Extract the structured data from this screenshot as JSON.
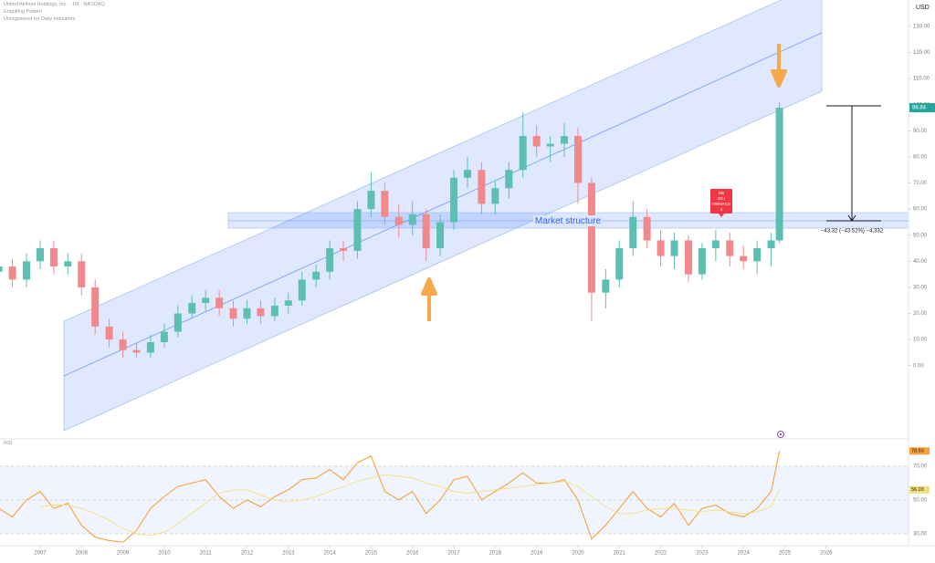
{
  "header": {
    "title": "United Airlines Holdings, Inc. · 1M · NASDAQ",
    "line2": "Engulfing Pattern",
    "line3": "Unregistered for Daily Indicators"
  },
  "currency": "USD",
  "chart_data": [
    {
      "type": "candlestick",
      "x": [
        2006,
        2006.33,
        2006.67,
        2007,
        2007.33,
        2007.67,
        2008,
        2008.33,
        2008.67,
        2009,
        2009.33,
        2009.67,
        2010,
        2010.33,
        2010.67,
        2011,
        2011.33,
        2011.67,
        2012,
        2012.33,
        2012.67,
        2013,
        2013.33,
        2013.67,
        2014,
        2014.33,
        2014.67,
        2015,
        2015.33,
        2015.67,
        2016,
        2016.33,
        2016.67,
        2017,
        2017.33,
        2017.67,
        2018,
        2018.33,
        2018.67,
        2019,
        2019.33,
        2019.67,
        2020,
        2020.33,
        2020.67,
        2021,
        2021.33,
        2021.67,
        2022,
        2022.33,
        2022.67,
        2023,
        2023.33,
        2023.67,
        2024,
        2024.33,
        2024.67,
        2024.87
      ],
      "open": [
        36,
        38,
        33,
        40,
        45,
        38,
        40,
        30,
        15,
        10,
        6,
        5,
        9,
        13,
        20,
        24,
        26,
        22,
        18,
        22,
        19,
        23,
        25,
        33,
        36,
        45,
        44,
        60,
        67,
        57,
        54,
        58,
        45,
        55,
        72,
        75,
        62,
        68,
        75,
        88,
        84,
        85,
        88,
        70,
        28,
        33,
        45,
        57,
        48,
        42,
        48,
        35,
        45,
        48,
        42,
        40,
        45,
        48
      ],
      "high": [
        41,
        41,
        43,
        48,
        48,
        43,
        43,
        33,
        18,
        13,
        9,
        12,
        16,
        23,
        27,
        29,
        29,
        25,
        25,
        25,
        26,
        28,
        36,
        39,
        48,
        48,
        63,
        74,
        70,
        62,
        63,
        60,
        58,
        75,
        80,
        78,
        71,
        78,
        97,
        92,
        88,
        93,
        91,
        72,
        37,
        48,
        63,
        60,
        52,
        51,
        50,
        47,
        52,
        51,
        46,
        48,
        51,
        101
      ],
      "low": [
        33,
        30,
        30,
        37,
        35,
        35,
        27,
        12,
        7,
        3,
        3,
        3,
        7,
        11,
        18,
        21,
        19,
        15,
        16,
        16,
        17,
        20,
        23,
        30,
        33,
        40,
        41,
        57,
        54,
        49,
        50,
        40,
        42,
        52,
        68,
        58,
        58,
        64,
        72,
        80,
        78,
        80,
        62,
        17,
        22,
        30,
        42,
        45,
        38,
        37,
        32,
        33,
        40,
        38,
        37,
        35,
        38,
        47
      ],
      "close": [
        38,
        33,
        40,
        45,
        38,
        40,
        30,
        15,
        10,
        6,
        5,
        9,
        13,
        20,
        24,
        26,
        22,
        18,
        22,
        19,
        23,
        25,
        33,
        36,
        45,
        44,
        60,
        67,
        57,
        54,
        58,
        45,
        55,
        72,
        75,
        62,
        68,
        75,
        88,
        84,
        85,
        88,
        70,
        28,
        33,
        45,
        57,
        48,
        42,
        48,
        35,
        45,
        48,
        42,
        40,
        45,
        48,
        98.84
      ],
      "up_color": "#5dbfb1",
      "down_color": "#f0898c",
      "xlim": [
        2006.03,
        2027.99
      ],
      "xticks": [
        2007,
        2008,
        2009,
        2010,
        2011,
        2012,
        2013,
        2014,
        2015,
        2016,
        2017,
        2018,
        2019,
        2020,
        2021,
        2022,
        2023,
        2024,
        2025,
        2026
      ],
      "ylim": [
        -27.7,
        140.1
      ],
      "yticks": [
        {
          "value": 0,
          "label": "0.00"
        },
        {
          "value": 10,
          "label": "10.00"
        },
        {
          "value": 20,
          "label": "20.00"
        },
        {
          "value": 30,
          "label": "30.00"
        },
        {
          "value": 40,
          "label": "40.00"
        },
        {
          "value": 50,
          "label": "50.00"
        },
        {
          "value": 60,
          "label": "60.00"
        },
        {
          "value": 70,
          "label": "70.00"
        },
        {
          "value": 80,
          "label": "80.00"
        },
        {
          "value": 90,
          "label": "90.00"
        },
        {
          "value": 100,
          "label": "100.00"
        },
        {
          "value": 110,
          "label": "110.00"
        },
        {
          "value": 120,
          "label": "120.00"
        },
        {
          "value": 130,
          "label": "130.00"
        }
      ],
      "annotations": {
        "zone": "Market structure",
        "measure": "−43.32 (−43.52%) −4,332",
        "signal": [
          "BB",
          "DCI",
          "VWMACD",
          "3"
        ]
      }
    },
    {
      "type": "line",
      "title": "RSI",
      "series": [
        {
          "color": "#f7a23b",
          "values": [
            45,
            40,
            50,
            55,
            45,
            48,
            35,
            28,
            26,
            25,
            32,
            45,
            52,
            58,
            60,
            62,
            52,
            45,
            50,
            46,
            52,
            56,
            62,
            63,
            68,
            62,
            72,
            76,
            55,
            50,
            55,
            42,
            50,
            62,
            64,
            50,
            55,
            60,
            66,
            60,
            60,
            62,
            50,
            27,
            35,
            45,
            55,
            45,
            40,
            48,
            35,
            45,
            47,
            42,
            40,
            45,
            55,
            78.93
          ]
        },
        {
          "color": "#f3e07a",
          "values": [
            null,
            null,
            null,
            46,
            47,
            47,
            45,
            42,
            38,
            33,
            30,
            29,
            31,
            36,
            42,
            48,
            54,
            56,
            56,
            53,
            50,
            49,
            50,
            52,
            55,
            58,
            61,
            63,
            65,
            64,
            63,
            60,
            58,
            55,
            54,
            55,
            56,
            57,
            58,
            59,
            60,
            61,
            58,
            52,
            46,
            42,
            42,
            44,
            45,
            45,
            44,
            43,
            44,
            43,
            42,
            43,
            46,
            56.03
          ]
        }
      ],
      "ylim": [
        23,
        85
      ],
      "yticks": [
        {
          "value": 30,
          "label": "30.00"
        },
        {
          "value": 50,
          "label": "50.00"
        },
        {
          "value": 70,
          "label": "70.00"
        }
      ]
    }
  ]
}
